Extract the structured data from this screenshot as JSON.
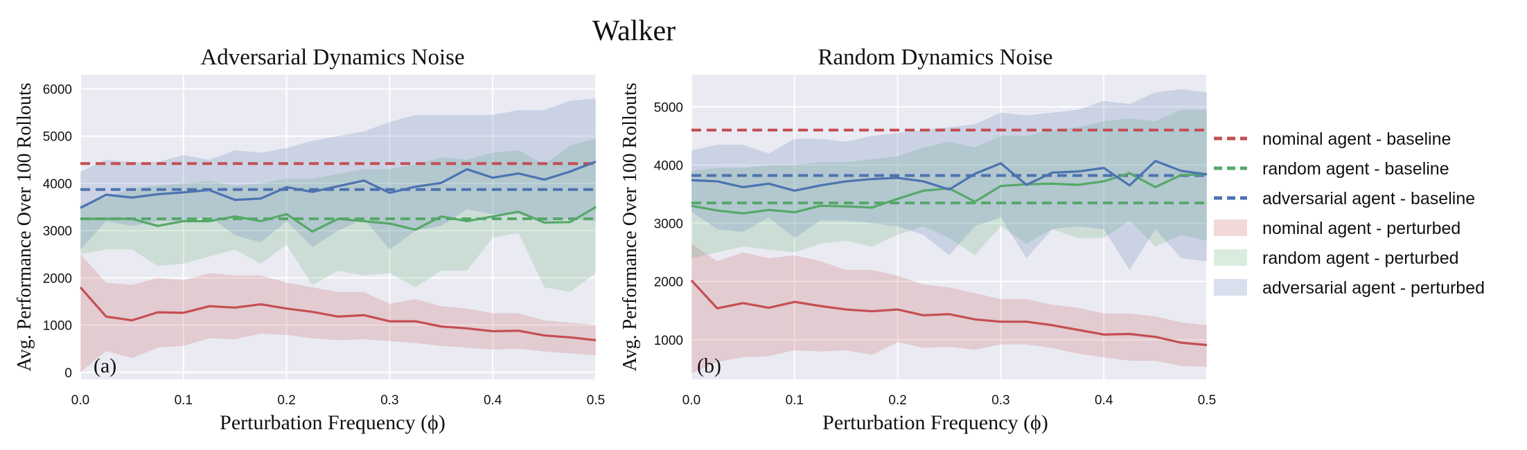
{
  "figure": {
    "title": "Walker"
  },
  "chart_data": [
    {
      "type": "line",
      "title": "Adversarial Dynamics Noise",
      "panel_label": "(a)",
      "xlabel": "Perturbation Frequency (ϕ)",
      "ylabel": "Avg. Performance Over 100 Rollouts",
      "xlim": [
        0,
        0.5
      ],
      "ylim": [
        -150,
        6300
      ],
      "xticks": [
        0.0,
        0.1,
        0.2,
        0.3,
        0.4,
        0.5
      ],
      "xtick_labels": [
        "0.0",
        "0.1",
        "0.2",
        "0.3",
        "0.4",
        "0.5"
      ],
      "yticks": [
        0,
        1000,
        2000,
        3000,
        4000,
        5000,
        6000
      ],
      "ytick_labels": [
        "0",
        "1000",
        "2000",
        "3000",
        "4000",
        "5000",
        "6000"
      ],
      "grid": true,
      "x": [
        0.0,
        0.025,
        0.05,
        0.075,
        0.1,
        0.125,
        0.15,
        0.175,
        0.2,
        0.225,
        0.25,
        0.275,
        0.3,
        0.325,
        0.35,
        0.375,
        0.4,
        0.425,
        0.45,
        0.475,
        0.5
      ],
      "baselines": [
        {
          "key": "nominal",
          "value": 4420
        },
        {
          "key": "random",
          "value": 3250
        },
        {
          "key": "adversarial",
          "value": 3870
        }
      ],
      "series": [
        {
          "key": "nominal",
          "values": [
            1800,
            1180,
            1100,
            1270,
            1260,
            1400,
            1370,
            1440,
            1350,
            1280,
            1180,
            1210,
            1080,
            1080,
            970,
            930,
            870,
            880,
            780,
            740,
            680
          ],
          "lower": [
            0,
            450,
            300,
            520,
            560,
            720,
            700,
            820,
            790,
            720,
            680,
            700,
            660,
            620,
            560,
            520,
            480,
            500,
            440,
            400,
            360
          ],
          "upper": [
            2500,
            1900,
            1850,
            2000,
            1950,
            2100,
            2050,
            2050,
            1900,
            1800,
            1700,
            1700,
            1450,
            1550,
            1400,
            1350,
            1250,
            1250,
            1100,
            1050,
            1000
          ]
        },
        {
          "key": "random",
          "values": [
            3250,
            3250,
            3250,
            3100,
            3200,
            3200,
            3300,
            3200,
            3350,
            2980,
            3250,
            3200,
            3150,
            3020,
            3300,
            3200,
            3300,
            3400,
            3170,
            3180,
            3500
          ],
          "lower": [
            2500,
            2600,
            2600,
            2250,
            2300,
            2450,
            2600,
            2300,
            2700,
            1850,
            2150,
            2050,
            2100,
            1800,
            2150,
            2150,
            2850,
            2950,
            1800,
            1700,
            2100
          ],
          "upper": [
            3550,
            3700,
            3900,
            3950,
            4000,
            4050,
            3950,
            4000,
            4100,
            4100,
            4200,
            4300,
            4300,
            4400,
            4550,
            4500,
            4650,
            4700,
            4400,
            4800,
            4950
          ]
        },
        {
          "key": "adversarial",
          "values": [
            3480,
            3760,
            3700,
            3770,
            3810,
            3860,
            3650,
            3680,
            3920,
            3820,
            3940,
            4060,
            3800,
            3930,
            4010,
            4300,
            4120,
            4210,
            4080,
            4250,
            4460
          ],
          "lower": [
            2600,
            3200,
            3100,
            3200,
            3200,
            3300,
            2900,
            2750,
            3200,
            2650,
            3000,
            3250,
            2600,
            3000,
            3100,
            3450,
            3350,
            3350,
            3200,
            3250,
            3200
          ],
          "upper": [
            4250,
            4500,
            4450,
            4450,
            4600,
            4500,
            4700,
            4650,
            4750,
            4900,
            5000,
            5100,
            5300,
            5450,
            5450,
            5450,
            5450,
            5550,
            5550,
            5750,
            5800
          ]
        }
      ]
    },
    {
      "type": "line",
      "title": "Random Dynamics Noise",
      "panel_label": "(b)",
      "xlabel": "Perturbation Frequency (ϕ)",
      "ylabel": "Avg. Performance Over 100 Rollouts",
      "xlim": [
        0,
        0.5
      ],
      "ylim": [
        320,
        5550
      ],
      "xticks": [
        0.0,
        0.1,
        0.2,
        0.3,
        0.4,
        0.5
      ],
      "xtick_labels": [
        "0.0",
        "0.1",
        "0.2",
        "0.3",
        "0.4",
        "0.5"
      ],
      "yticks": [
        1000,
        2000,
        3000,
        4000,
        5000
      ],
      "ytick_labels": [
        "1000",
        "2000",
        "3000",
        "4000",
        "5000"
      ],
      "grid": true,
      "x": [
        0.0,
        0.025,
        0.05,
        0.075,
        0.1,
        0.125,
        0.15,
        0.175,
        0.2,
        0.225,
        0.25,
        0.275,
        0.3,
        0.325,
        0.35,
        0.375,
        0.4,
        0.425,
        0.45,
        0.475,
        0.5
      ],
      "baselines": [
        {
          "key": "nominal",
          "value": 4600
        },
        {
          "key": "random",
          "value": 3350
        },
        {
          "key": "adversarial",
          "value": 3820
        }
      ],
      "series": [
        {
          "key": "nominal",
          "values": [
            2020,
            1540,
            1630,
            1550,
            1650,
            1580,
            1520,
            1490,
            1520,
            1420,
            1440,
            1350,
            1310,
            1310,
            1250,
            1170,
            1090,
            1100,
            1050,
            950,
            910
          ],
          "lower": [
            420,
            620,
            700,
            720,
            820,
            800,
            820,
            740,
            960,
            860,
            880,
            830,
            920,
            920,
            860,
            760,
            700,
            640,
            640,
            550,
            540
          ],
          "upper": [
            2650,
            2350,
            2500,
            2400,
            2450,
            2350,
            2200,
            2200,
            2100,
            1950,
            1900,
            1800,
            1700,
            1700,
            1600,
            1550,
            1450,
            1450,
            1400,
            1300,
            1250
          ]
        },
        {
          "key": "random",
          "values": [
            3300,
            3220,
            3170,
            3230,
            3190,
            3300,
            3290,
            3270,
            3420,
            3560,
            3600,
            3370,
            3640,
            3670,
            3680,
            3660,
            3720,
            3860,
            3620,
            3830,
            3840
          ],
          "lower": [
            2400,
            2500,
            2600,
            2550,
            2500,
            2650,
            2700,
            2600,
            2800,
            2950,
            2750,
            2450,
            2950,
            2650,
            2900,
            2750,
            2750,
            3050,
            2600,
            2800,
            2700
          ],
          "upper": [
            3900,
            3950,
            3950,
            4000,
            4000,
            4050,
            4050,
            4100,
            4150,
            4300,
            4400,
            4300,
            4500,
            4500,
            4600,
            4650,
            4750,
            4800,
            4750,
            4950,
            4950
          ]
        },
        {
          "key": "adversarial",
          "values": [
            3740,
            3720,
            3620,
            3680,
            3560,
            3650,
            3720,
            3760,
            3780,
            3720,
            3580,
            3850,
            4030,
            3660,
            3870,
            3890,
            3950,
            3650,
            4070,
            3900,
            3840
          ],
          "lower": [
            3200,
            2900,
            2850,
            3100,
            2750,
            3050,
            3050,
            3000,
            2950,
            2800,
            2450,
            2950,
            3100,
            2400,
            2900,
            2950,
            2900,
            2200,
            2900,
            2400,
            2350
          ],
          "upper": [
            4250,
            4350,
            4350,
            4200,
            4450,
            4450,
            4400,
            4500,
            4550,
            4600,
            4650,
            4700,
            4900,
            4850,
            4900,
            4950,
            5100,
            5050,
            5250,
            5300,
            5250
          ]
        }
      ]
    }
  ],
  "legend": {
    "placement": "right",
    "entries": [
      {
        "label": "nominal agent - baseline",
        "kind": "dashed",
        "color": "#c44e52"
      },
      {
        "label": "random agent - baseline",
        "kind": "dashed",
        "color": "#55a868"
      },
      {
        "label": "adversarial agent - baseline",
        "kind": "dashed",
        "color": "#4c72b0"
      },
      {
        "label": "nominal agent - perturbed",
        "kind": "band",
        "color": "#c44e52"
      },
      {
        "label": "random agent - perturbed",
        "kind": "band",
        "color": "#55a868"
      },
      {
        "label": "adversarial agent - perturbed",
        "kind": "band",
        "color": "#4c72b0"
      }
    ]
  },
  "colors": {
    "nominal": "#c44e52",
    "random": "#55a868",
    "adversarial": "#4c72b0",
    "plot_background": "#eaeaf2",
    "grid": "#ffffff"
  }
}
